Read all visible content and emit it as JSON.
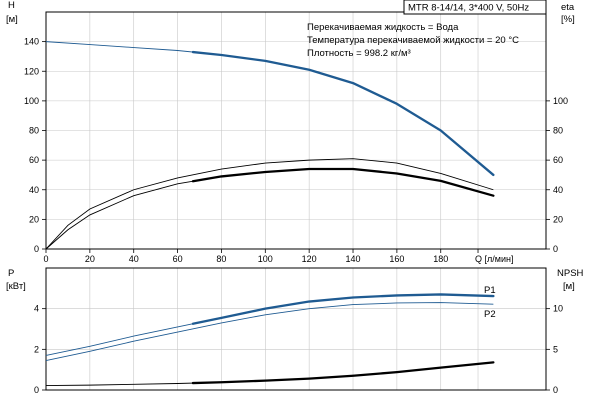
{
  "colors": {
    "blue": "#1f5b92",
    "black": "#000000",
    "grid": "#c8c8c8",
    "frame": "#000000"
  },
  "header": {
    "title": "MTR 8-14/14, 3*400 V, 50Hz",
    "info_lines": [
      "Перекачиваемая жидкость = Вода",
      "Температура перекачиваемой жидкости = 20 °C",
      "Плотность = 998.2 кг/м³"
    ]
  },
  "chart_data": [
    {
      "type": "line",
      "title": "",
      "xlabel": "Q [л/мин]",
      "xlim": [
        0,
        228
      ],
      "x_ticks": [
        0,
        20,
        40,
        60,
        80,
        100,
        120,
        140,
        160,
        180
      ],
      "x_tick_labels": [
        "0",
        "20",
        "40",
        "60",
        "80",
        "100",
        "120",
        "140",
        "160",
        "180",
        "Q [л/мин]"
      ],
      "ylabel_left": "H\n[м]",
      "ylabel_left_lines": [
        "H",
        "[м]"
      ],
      "ylim_left": [
        0,
        160
      ],
      "y_ticks_left": [
        0,
        20,
        40,
        60,
        80,
        100,
        120,
        140
      ],
      "ylabel_right": "eta\n[%]",
      "ylabel_right_lines": [
        "eta",
        "[%]"
      ],
      "ylim_right": [
        0,
        160
      ],
      "y_ticks_right": [
        0,
        20,
        40,
        60,
        80,
        100
      ],
      "grid": true,
      "series": [
        {
          "axis": "left",
          "color": "#1f5b92",
          "style": "thin-then-thick",
          "thick_from": 67,
          "x": [
            0,
            20,
            40,
            60,
            80,
            100,
            120,
            140,
            160,
            180,
            204
          ],
          "y": [
            140,
            138,
            136,
            134,
            131,
            127,
            121,
            112,
            98,
            80,
            50
          ]
        },
        {
          "axis": "right",
          "color": "#000000",
          "style": "thin",
          "x": [
            0,
            10,
            20,
            40,
            60,
            80,
            100,
            120,
            140,
            160,
            180,
            204
          ],
          "y": [
            0,
            16,
            27,
            40,
            48,
            54,
            58,
            60,
            61,
            58,
            51,
            40
          ]
        },
        {
          "axis": "right",
          "color": "#000000",
          "style": "thin-then-thick",
          "thick_from": 67,
          "x": [
            0,
            10,
            20,
            40,
            60,
            80,
            100,
            120,
            140,
            160,
            180,
            204
          ],
          "y": [
            0,
            13,
            23,
            36,
            44,
            49,
            52,
            54,
            54,
            51,
            46,
            36
          ]
        }
      ]
    },
    {
      "type": "line",
      "title": "",
      "xlabel": "",
      "xlim": [
        0,
        228
      ],
      "ylabel_left": "P\n[кВт]",
      "ylabel_left_lines": [
        "P",
        "[кВт]"
      ],
      "ylim_left": [
        0,
        6
      ],
      "y_ticks_left": [
        0,
        2,
        4
      ],
      "ylabel_right": "NPSH\n[м]",
      "ylabel_right_lines": [
        "NPSH",
        "[м]"
      ],
      "ylim_right": [
        0,
        15
      ],
      "y_ticks_right": [
        0,
        5,
        10
      ],
      "grid": true,
      "series": [
        {
          "name": "P1",
          "axis": "left",
          "color": "#1f5b92",
          "style": "thin-then-thick",
          "thick_from": 67,
          "x": [
            0,
            20,
            40,
            60,
            80,
            100,
            120,
            140,
            160,
            180,
            204
          ],
          "y": [
            1.7,
            2.15,
            2.65,
            3.1,
            3.55,
            4.0,
            4.35,
            4.55,
            4.65,
            4.7,
            4.62
          ]
        },
        {
          "name": "P2",
          "axis": "left",
          "color": "#1f5b92",
          "style": "thin",
          "x": [
            0,
            20,
            40,
            60,
            80,
            100,
            120,
            140,
            160,
            180,
            204
          ],
          "y": [
            1.45,
            1.9,
            2.4,
            2.85,
            3.3,
            3.7,
            4.0,
            4.2,
            4.28,
            4.3,
            4.22
          ]
        },
        {
          "axis": "right",
          "color": "#000000",
          "style": "thin-then-thick",
          "thick_from": 67,
          "x": [
            0,
            20,
            40,
            60,
            80,
            100,
            120,
            140,
            160,
            180,
            204
          ],
          "y": [
            0.55,
            0.6,
            0.7,
            0.8,
            0.95,
            1.15,
            1.4,
            1.75,
            2.2,
            2.75,
            3.4
          ]
        }
      ]
    }
  ]
}
